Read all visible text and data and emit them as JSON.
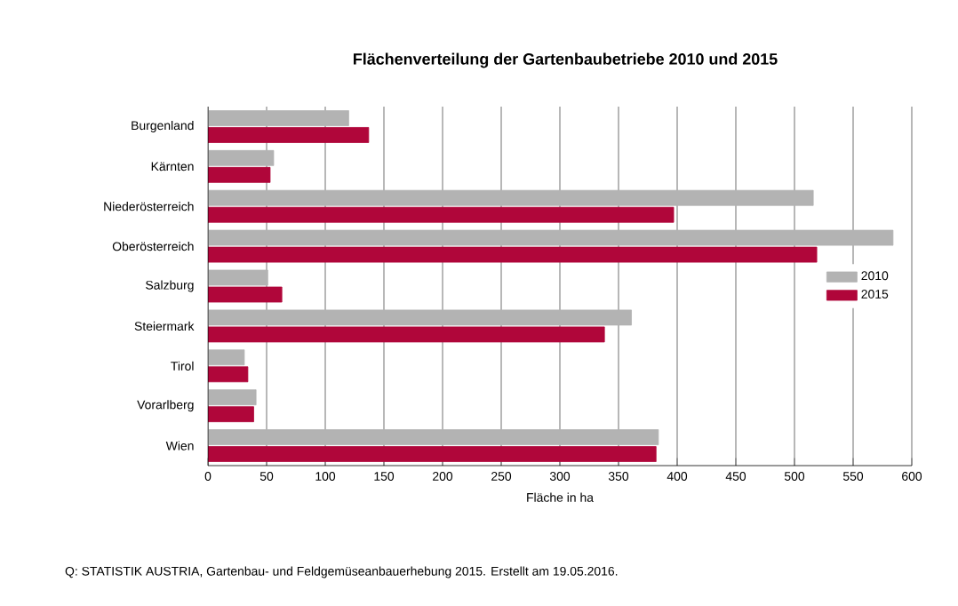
{
  "chart_data": {
    "type": "bar",
    "orientation": "horizontal",
    "title": "Flächenverteilung der Gartenbaubetriebe 2010 und 2015",
    "xlabel": "Fläche in ha",
    "categories": [
      "Burgenland",
      "Kärnten",
      "Niederösterreich",
      "Oberösterreich",
      "Salzburg",
      "Steiermark",
      "Tirol",
      "Vorarlberg",
      "Wien"
    ],
    "series": [
      {
        "name": "2010",
        "color": "#b3b3b3",
        "values": [
          120,
          56,
          516,
          584,
          51,
          361,
          31,
          41,
          384
        ]
      },
      {
        "name": "2015",
        "color": "#b0063a",
        "values": [
          137,
          53,
          397,
          519,
          63,
          338,
          34,
          39,
          382
        ]
      }
    ],
    "xlim": [
      0,
      600
    ],
    "xticks": [
      0,
      50,
      100,
      150,
      200,
      250,
      300,
      350,
      400,
      450,
      500,
      550,
      600
    ],
    "grid": "x",
    "legend": "right",
    "annotations": [
      "Q: STATISTIK AUSTRIA, Gartenbau- und Feldgemüseanbauerhebung 2015. Erstellt am 19.05.2016."
    ]
  }
}
